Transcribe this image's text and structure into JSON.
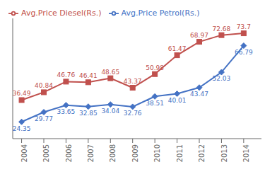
{
  "chart_data": {
    "type": "line",
    "x": [
      2004,
      2005,
      2006,
      2007,
      2008,
      2009,
      2010,
      2011,
      2012,
      2013,
      2014
    ],
    "series": [
      {
        "name": "Avg.Price Petrol(Rs.)",
        "color": "#4472C4",
        "marker": "diamond",
        "values": [
          24.35,
          29.77,
          33.65,
          32.85,
          34.04,
          32.76,
          38.51,
          40.01,
          43.47,
          52.03,
          66.79
        ]
      },
      {
        "name": "Avg.Price Diesel(Rs.)",
        "color": "#C0504D",
        "marker": "square",
        "values": [
          36.49,
          40.84,
          46.76,
          46.41,
          48.65,
          43.37,
          50.98,
          61.47,
          68.97,
          72.68,
          73.7
        ]
      }
    ],
    "xlim": [
      2003.6,
      2014.8
    ],
    "xticks": [
      2004,
      2005,
      2006,
      2007,
      2008,
      2009,
      2010,
      2011,
      2012,
      2013,
      2014
    ],
    "ylim": [
      15,
      82
    ],
    "data_labels": true,
    "tick_labels": "x",
    "grid": false,
    "legend": "upper left"
  }
}
